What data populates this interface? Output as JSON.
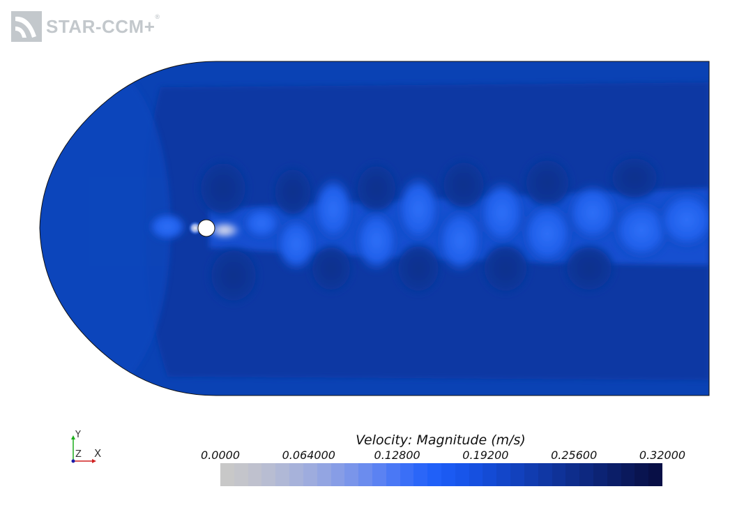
{
  "app": {
    "logo_text": "STAR-CCM",
    "logo_plus": "+",
    "logo_reg": "®"
  },
  "axes_triad": {
    "y": "Y",
    "z": "Z",
    "x": "X"
  },
  "legend": {
    "title": "Velocity: Magnitude (m/s)",
    "ticks": [
      "0.0000",
      "0.064000",
      "0.12800",
      "0.19200",
      "0.25600",
      "0.32000"
    ],
    "min": 0.0,
    "max": 0.32,
    "colors": [
      "#c8c8c8",
      "#c4c5cb",
      "#bfc1ce",
      "#b8bdd2",
      "#b0b8d6",
      "#a7b2da",
      "#9eacde",
      "#93a5e2",
      "#879de6",
      "#7a95ea",
      "#6b8cee",
      "#5b82f2",
      "#4a78f5",
      "#3a6ff7",
      "#2b66f8",
      "#2060f8",
      "#1b5af2",
      "#1855ea",
      "#1650e0",
      "#144bd5",
      "#1346c9",
      "#1241bd",
      "#113cb0",
      "#1037a4",
      "#0f3298",
      "#0e2d8c",
      "#0d2880",
      "#0c2374",
      "#0b1e68",
      "#0a195c",
      "#091450",
      "#080f46"
    ]
  },
  "field": {
    "background_color": "#0a42b4",
    "dark_region_color": "#0838a3",
    "wake_color": "#1f62ef",
    "cylinder_fill": "#ffffff"
  }
}
